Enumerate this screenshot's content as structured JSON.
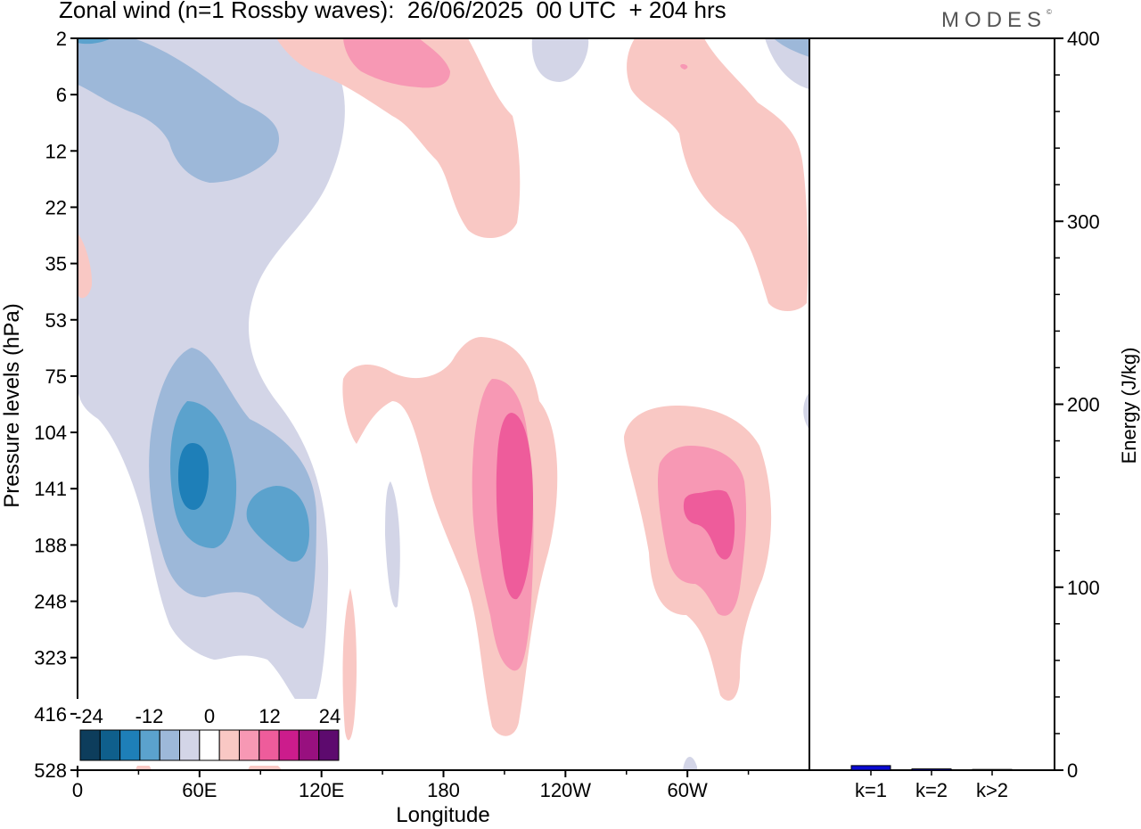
{
  "chart_data": [
    {
      "type": "heatmap",
      "title": "Zonal wind (n=1 Rossby waves):  26/06/2025  00 UTC  + 204 hrs",
      "xlabel": "Longitude",
      "ylabel": "Pressure levels (hPa)",
      "x_tick_labels": [
        "0",
        "60E",
        "120E",
        "180",
        "120W",
        "60W"
      ],
      "x_range_deg": [
        0,
        360
      ],
      "y_tick_labels": [
        "2",
        "6",
        "12",
        "22",
        "35",
        "53",
        "75",
        "104",
        "141",
        "188",
        "248",
        "323",
        "416",
        "528"
      ],
      "colorbar": {
        "tick_labels": [
          "-24",
          "-12",
          "0",
          "12",
          "24"
        ],
        "levels": [
          -30,
          -25,
          -20,
          -15,
          -10,
          -5,
          5,
          10,
          15,
          20,
          25,
          30
        ],
        "colors": [
          "#0d3d5c",
          "#0f5f8c",
          "#1e7fb8",
          "#5ba2cd",
          "#9db8d9",
          "#d3d5e7",
          "#ffffff",
          "#f9c8c4",
          "#f798b4",
          "#ee5c9b",
          "#cc1c8c",
          "#98107f",
          "#5d0a6e"
        ]
      },
      "features": [
        {
          "type": "minimum",
          "longitude_deg": 57,
          "pressure_hPa": 125,
          "value_min": -20
        },
        {
          "type": "minimum",
          "longitude_deg": 100,
          "pressure_hPa": 160,
          "value_min": -15
        },
        {
          "type": "minimum",
          "longitude_deg": 60,
          "pressure_hPa": 12,
          "value_min": -10
        },
        {
          "type": "maximum",
          "longitude_deg": 209,
          "pressure_hPa": 170,
          "value_max": 15
        },
        {
          "type": "maximum",
          "longitude_deg": 305,
          "pressure_hPa": 160,
          "value_max": 15
        },
        {
          "type": "maximum",
          "longitude_deg": 160,
          "pressure_hPa": 5,
          "value_max": 10
        }
      ]
    },
    {
      "type": "bar",
      "ylabel": "Energy (J/kg)",
      "categories": [
        "k=1",
        "k=2",
        "k>2"
      ],
      "values": [
        2.5,
        0.7,
        0.4
      ],
      "ylim": [
        0,
        400
      ],
      "y_tick_labels": [
        "0",
        "100",
        "200",
        "300",
        "400"
      ],
      "bar_color": "#0a0ad2"
    }
  ],
  "brand": "MODES"
}
